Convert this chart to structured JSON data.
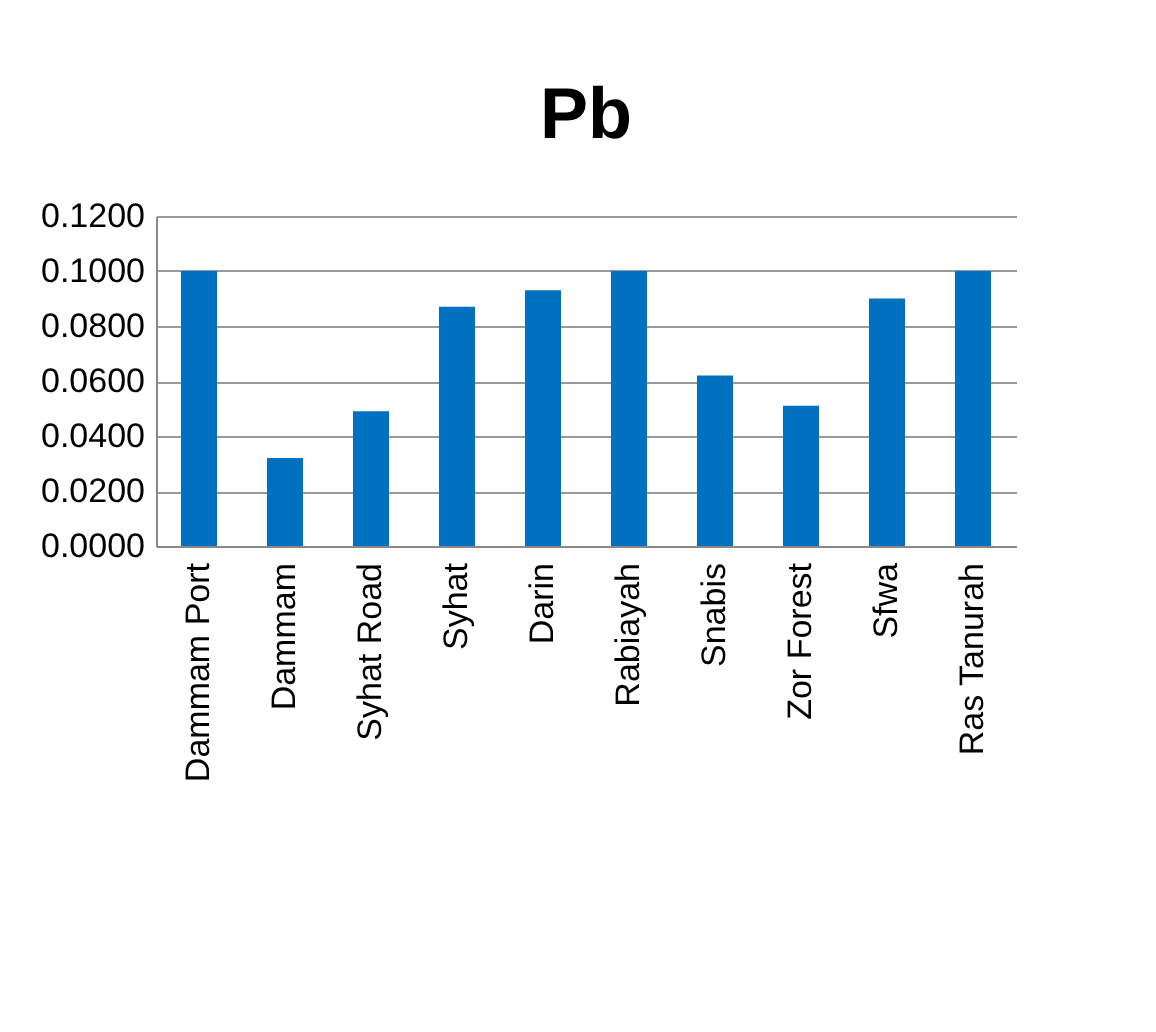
{
  "chart_data": {
    "type": "bar",
    "title": "Pb",
    "categories": [
      "Dammam Port",
      "Dammam",
      "Syhat Road",
      "Syhat",
      "Darin",
      "Rabiayah",
      "Snabis",
      "Zor Forest",
      "Sfwa",
      "Ras Tanurah"
    ],
    "values": [
      0.1,
      0.032,
      0.049,
      0.087,
      0.093,
      0.1,
      0.062,
      0.051,
      0.09,
      0.1
    ],
    "color": "#0070c0",
    "ylim": [
      0,
      0.12
    ],
    "yticks": [
      {
        "value": 0,
        "label": "0.0000"
      },
      {
        "value": 0.02,
        "label": "0.0200"
      },
      {
        "value": 0.04,
        "label": "0.0400"
      },
      {
        "value": 0.06,
        "label": "0.0600"
      },
      {
        "value": 0.08,
        "label": "0.0800"
      },
      {
        "value": 0.1,
        "label": "0.1000"
      },
      {
        "value": 0.12,
        "label": "0.1200"
      }
    ],
    "grid": "y"
  }
}
